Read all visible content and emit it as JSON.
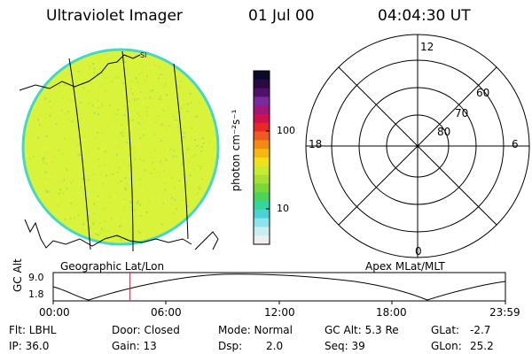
{
  "header": {
    "title": "Ultraviolet Imager",
    "date": "01 Jul 00",
    "time": "04:04:30 UT"
  },
  "colors": {
    "globe_fill": "#d9f23a",
    "globe_edge": "#44d6c8",
    "timeline_marker": "#e02020"
  },
  "globe_panel": {
    "label": "Geographic Lat/Lon",
    "coastline_label": "Si"
  },
  "colorbar": {
    "unit_label": "photon cm⁻²s⁻¹",
    "ticks": [
      "100",
      "10"
    ],
    "colors": [
      "#0a0a28",
      "#2a0a40",
      "#50106a",
      "#7a2aa0",
      "#a0187a",
      "#d01050",
      "#e82828",
      "#f05a20",
      "#f48a10",
      "#f6b810",
      "#f2e018",
      "#c8ea30",
      "#a6e030",
      "#7ad838",
      "#4cd45a",
      "#34d6a0",
      "#4ad2d4",
      "#8ee4ec",
      "#c8eef2",
      "#eeeeee"
    ]
  },
  "polar_panel": {
    "label": "Apex MLat/MLT",
    "mlt_labels": {
      "top": "12",
      "left": "18",
      "right": "6",
      "bottom": "0"
    },
    "mlat_labels": [
      "60",
      "70",
      "80"
    ]
  },
  "timeline": {
    "ylabel": "GC Alt",
    "ymax": "9.0",
    "ymin": "1.8",
    "xticks": [
      "00:00",
      "06:00",
      "12:00",
      "18:00",
      "23:59"
    ],
    "marker_time_hours": 4.075
  },
  "status": {
    "row1": [
      "Flt: LBHL",
      "Door: Closed",
      "Mode: Normal",
      "GC Alt: 5.3 Re",
      "GLat:",
      "-2.7"
    ],
    "row2": [
      "IP: 36.0",
      "Gain: 13",
      "Dsp:",
      "2.0",
      "Seq: 39",
      "GLon:",
      "25.2"
    ]
  }
}
